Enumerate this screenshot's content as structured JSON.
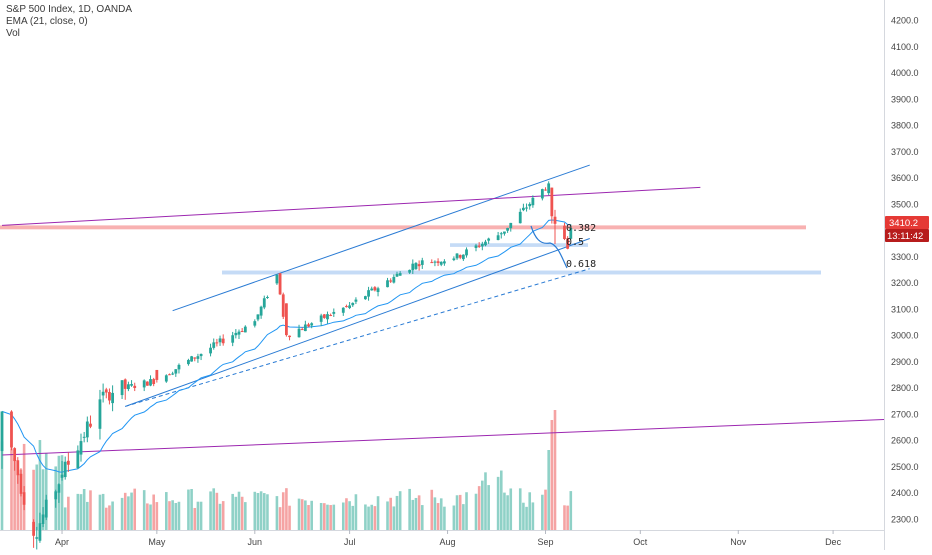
{
  "legend": {
    "symbol_line": "S&P 500 Index, 1D, OANDA",
    "indicator_line": "EMA (21, close, 0)",
    "volume_line": "Vol"
  },
  "price_axis_labels": [
    "4200.0",
    "4100.0",
    "4000.0",
    "3900.0",
    "3800.0",
    "3700.0",
    "3600.0",
    "3500.0",
    "3300.0",
    "3200.0",
    "3100.0",
    "3000.0",
    "2900.0",
    "2800.0",
    "2700.0",
    "2600.0",
    "2500.0",
    "2400.0",
    "2300.0"
  ],
  "time_axis_labels": [
    {
      "label": "Apr",
      "date": "2020-04-01"
    },
    {
      "label": "May",
      "date": "2020-05-01"
    },
    {
      "label": "Jun",
      "date": "2020-06-01"
    },
    {
      "label": "Jul",
      "date": "2020-07-01"
    },
    {
      "label": "Aug",
      "date": "2020-08-01"
    },
    {
      "label": "Sep",
      "date": "2020-09-01"
    },
    {
      "label": "Oct",
      "date": "2020-10-01"
    },
    {
      "label": "Nov",
      "date": "2020-11-01"
    },
    {
      "label": "Dec",
      "date": "2020-12-01"
    }
  ],
  "current_price_tag": {
    "price": "3410.2",
    "countdown": "13:11:42",
    "color": "#e53935"
  },
  "colors": {
    "up": "#26a69a",
    "down": "#ef5350",
    "ema": "#2196f3",
    "channel": "#2a7bd4",
    "purple": "#9c27b0",
    "fib_zone": "#bbd5f5",
    "resistance_zone": "#f7a9a9",
    "vol_up": "#8fd1c7",
    "vol_down": "#f5a3a3",
    "grid_axis": "#d5d8de"
  },
  "fib_levels": [
    {
      "label": "0.382",
      "price": 3410
    },
    {
      "label": "0.5",
      "price": 3345
    },
    {
      "label": "0.618",
      "price": 3240
    }
  ],
  "chart_data": {
    "type": "candlestick",
    "title": "S&P 500 Index, 1D, OANDA",
    "ylim": [
      2240,
      4260
    ],
    "x_range": [
      "2020-03-13",
      "2020-12-31"
    ],
    "price_axis_step": 100,
    "indicators": [
      "EMA (21, close, 0)",
      "Vol"
    ],
    "ohlc_daily_approx": [
      {
        "date": "2020-03-13",
        "o": 2560,
        "h": 2711,
        "l": 2492,
        "c": 2711
      },
      {
        "date": "2020-03-23",
        "o": 2290,
        "h": 2300,
        "l": 2191,
        "c": 2237
      },
      {
        "date": "2020-04-01",
        "o": 2458,
        "h": 2522,
        "l": 2447,
        "c": 2470
      },
      {
        "date": "2020-04-15",
        "o": 2795,
        "h": 2801,
        "l": 2761,
        "c": 2783
      },
      {
        "date": "2020-05-01",
        "o": 2869,
        "h": 2869,
        "l": 2821,
        "c": 2831
      },
      {
        "date": "2020-06-01",
        "o": 3038,
        "h": 3062,
        "l": 3031,
        "c": 3055
      },
      {
        "date": "2020-06-08",
        "o": 3199,
        "h": 3233,
        "l": 3193,
        "c": 3232
      },
      {
        "date": "2020-06-11",
        "o": 3123,
        "h": 3123,
        "l": 2996,
        "c": 3002
      },
      {
        "date": "2020-07-01",
        "o": 3105,
        "h": 3128,
        "l": 3101,
        "c": 3115
      },
      {
        "date": "2020-07-22",
        "o": 3254,
        "h": 3280,
        "l": 3250,
        "c": 3277
      },
      {
        "date": "2020-08-03",
        "o": 3288,
        "h": 3302,
        "l": 3284,
        "c": 3294
      },
      {
        "date": "2020-08-18",
        "o": 3387,
        "h": 3395,
        "l": 3370,
        "c": 3390
      },
      {
        "date": "2020-09-02",
        "o": 3543,
        "h": 3588,
        "l": 3535,
        "c": 3580
      },
      {
        "date": "2020-09-03",
        "o": 3564,
        "h": 3564,
        "l": 3427,
        "c": 3455
      },
      {
        "date": "2020-09-04",
        "o": 3453,
        "h": 3479,
        "l": 3349,
        "c": 3426
      },
      {
        "date": "2020-09-08",
        "o": 3371,
        "h": 3379,
        "l": 3329,
        "c": 3331
      },
      {
        "date": "2020-09-09",
        "o": 3369,
        "h": 3424,
        "l": 3366,
        "c": 3410
      }
    ],
    "horizontal_zones": [
      {
        "name": "resistance",
        "from": 3405,
        "to": 3420
      },
      {
        "name": "0.5",
        "from": 3338,
        "to": 3352
      },
      {
        "name": "0.618",
        "from": 3233,
        "to": 3247
      },
      {
        "name": "breakout",
        "from": 3233,
        "to": 3247
      }
    ],
    "trendlines": [
      {
        "name": "channel-upper",
        "from": {
          "date": "2020-05-06",
          "price": 3095
        },
        "to": {
          "date": "2020-09-15",
          "price": 3650
        }
      },
      {
        "name": "channel-lower",
        "from": {
          "date": "2020-04-21",
          "price": 2730
        },
        "to": {
          "date": "2020-09-15",
          "price": 3370
        }
      },
      {
        "name": "dashed-support",
        "from": {
          "date": "2020-04-21",
          "price": 2730
        },
        "to": {
          "date": "2020-09-15",
          "price": 3255
        },
        "dashed": true
      },
      {
        "name": "purple-upper",
        "from": {
          "date": "2020-03-13",
          "price": 3420
        },
        "to": {
          "date": "2020-10-20",
          "price": 3565
        }
      },
      {
        "name": "purple-lower",
        "from": {
          "date": "2020-03-13",
          "price": 2545
        },
        "to": {
          "date": "2020-12-31",
          "price": 2680
        }
      }
    ]
  }
}
